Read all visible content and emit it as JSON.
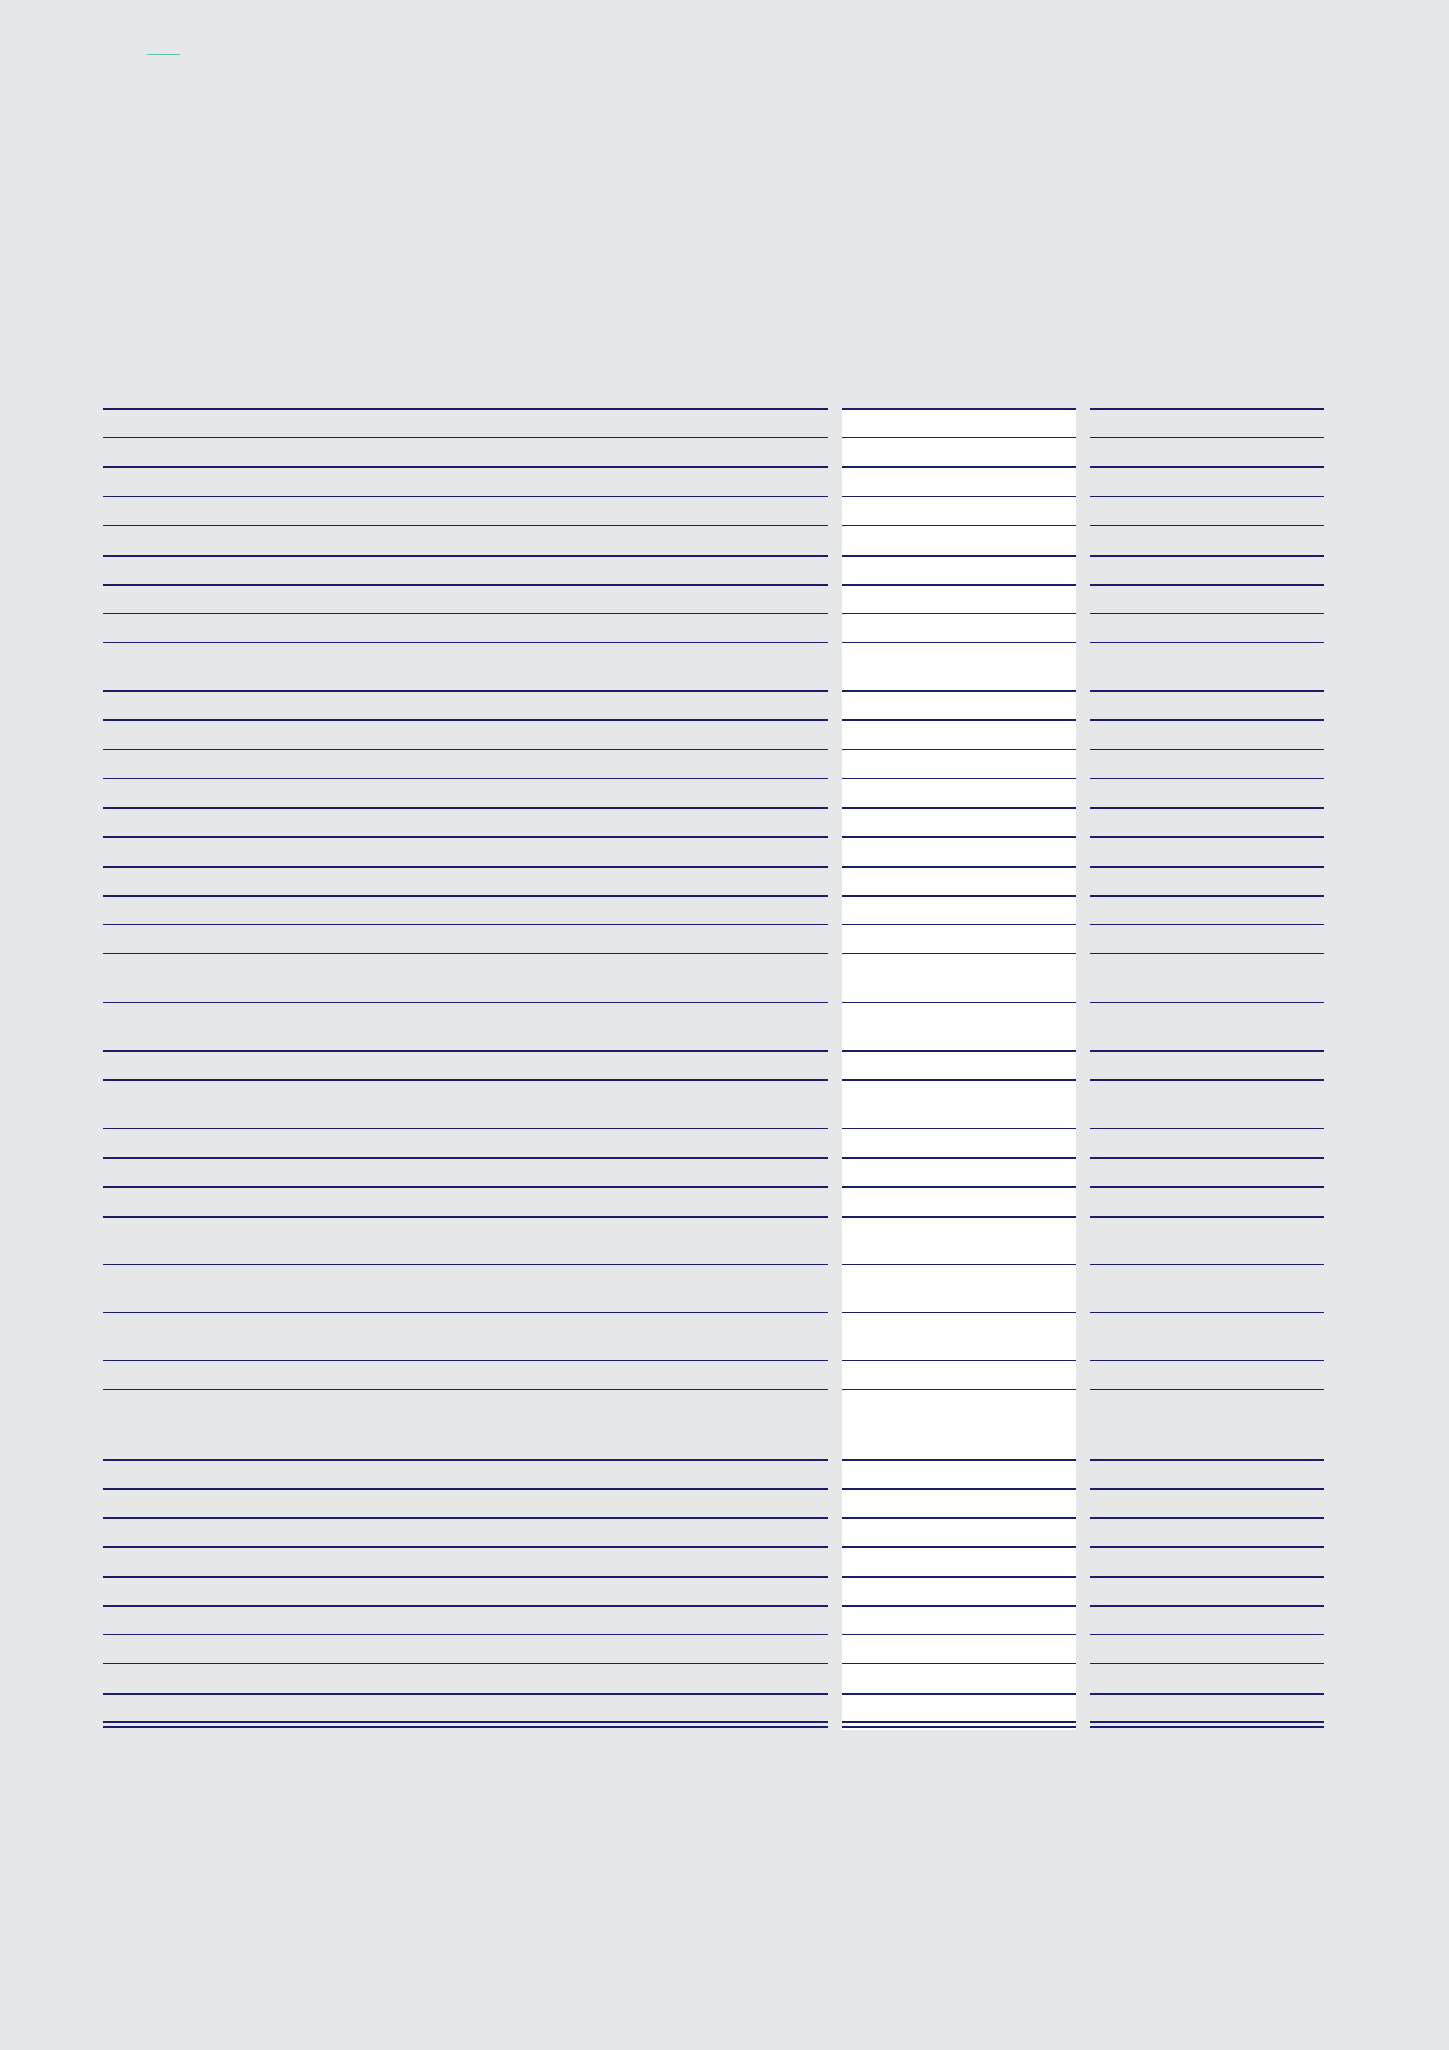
{
  "page": {
    "background": "#e6e7e8",
    "accent_color": "#5cc6ad",
    "rule_color": "#1b1c6a",
    "highlight_column_color": "#ffffff"
  },
  "table": {
    "columns": 3,
    "highlighted_column_index": 1,
    "rows_visible": 40,
    "text_visible": false
  }
}
